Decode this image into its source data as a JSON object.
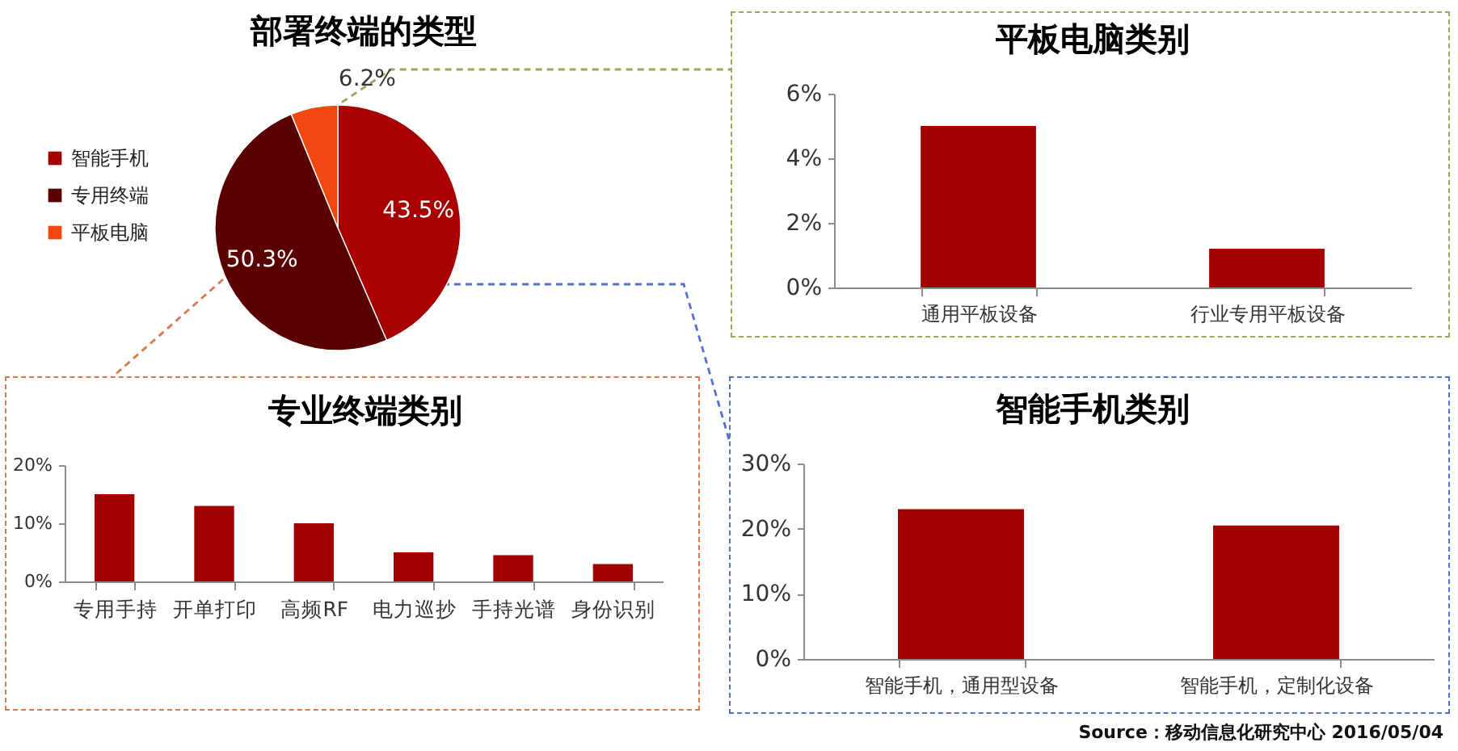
{
  "chart_data": [
    {
      "type": "pie",
      "title": "部署终端的类型",
      "categories": [
        "智能手机",
        "专用终端",
        "平板电脑"
      ],
      "values": [
        43.5,
        50.3,
        6.2
      ],
      "colors": [
        "#a80000",
        "#5a0000",
        "#f04810"
      ],
      "value_labels": [
        "43.5%",
        "50.3%",
        "6.2%"
      ],
      "legend": "left"
    },
    {
      "type": "bar",
      "title": "平板电脑类别",
      "categories": [
        "通用平板设备",
        "行业专用平板设备"
      ],
      "values": [
        5.0,
        1.2
      ],
      "color": "#a30000",
      "ylim": [
        0,
        6
      ],
      "yticks": [
        {
          "value": 0,
          "label": "0%"
        },
        {
          "value": 2,
          "label": "2%"
        },
        {
          "value": 4,
          "label": "4%"
        },
        {
          "value": 6,
          "label": "6%"
        }
      ]
    },
    {
      "type": "bar",
      "title": "专业终端类别",
      "categories": [
        "专用手持",
        "开单打印",
        "高频RF",
        "电力巡抄",
        "手持光谱",
        "身份识别"
      ],
      "values": [
        15,
        13,
        10,
        5,
        4.5,
        3
      ],
      "color": "#a30000",
      "ylim": [
        0,
        20
      ],
      "yticks": [
        {
          "value": 0,
          "label": "0%"
        },
        {
          "value": 10,
          "label": "10%"
        },
        {
          "value": 20,
          "label": "20%"
        }
      ]
    },
    {
      "type": "bar",
      "title": "智能手机类别",
      "categories": [
        "智能手机，通用型设备",
        "智能手机，定制化设备"
      ],
      "values": [
        23,
        20.5
      ],
      "color": "#a30000",
      "ylim": [
        0,
        30
      ],
      "yticks": [
        {
          "value": 0,
          "label": "0%"
        },
        {
          "value": 10,
          "label": "10%"
        },
        {
          "value": 20,
          "label": "20%"
        },
        {
          "value": 30,
          "label": "30%"
        }
      ],
      "annotations": [
        "Source：移动信息化研究中心 2016/05/04"
      ]
    }
  ]
}
